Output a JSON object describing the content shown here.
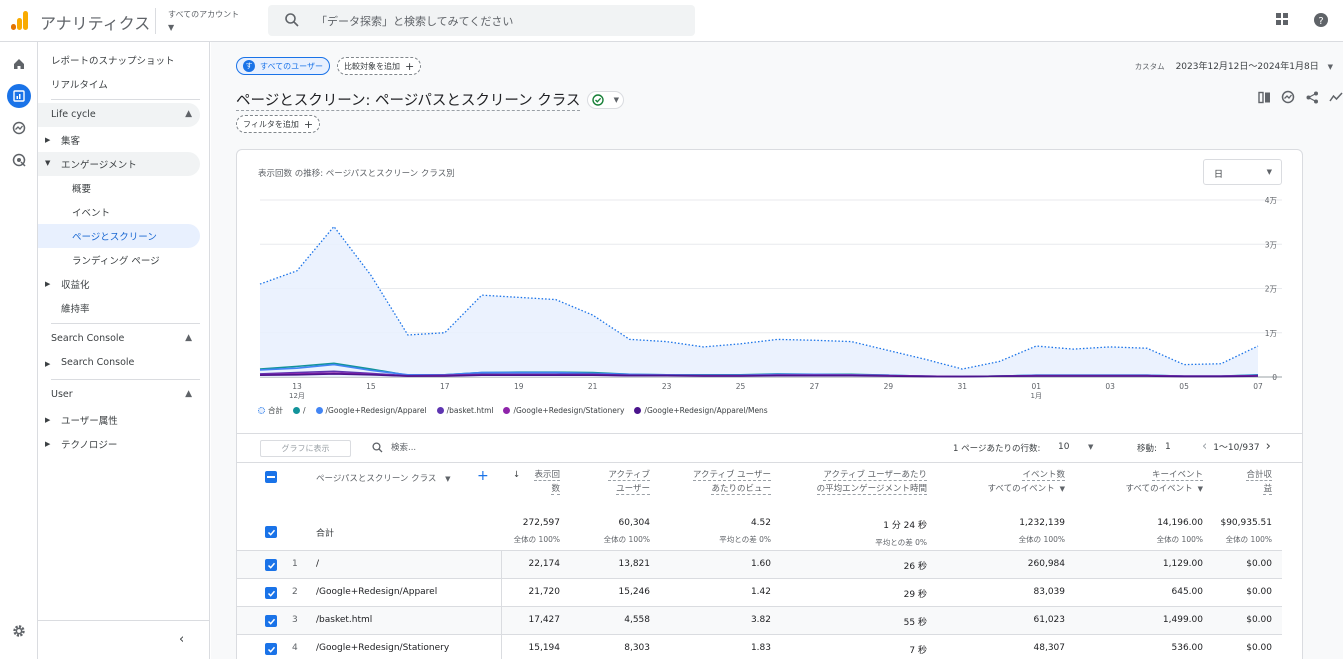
{
  "app": {
    "title": "アナリティクス",
    "account_label": "すべてのアカウント",
    "search_placeholder": "「データ探索」と検索してみてください",
    "brand_colors": {
      "orange": "#f9ab00",
      "dark_orange": "#e37400",
      "blue": "#1a73e8"
    }
  },
  "nav": {
    "top_items": [
      "レポートのスナップショット",
      "リアルタイム"
    ],
    "lifecycle": {
      "title": "Life cycle",
      "items": {
        "acquisition": "集客",
        "engagement": "エンゲージメント",
        "engagement_sub": [
          "概要",
          "イベント",
          "ページとスクリーン",
          "ランディング ページ"
        ],
        "monetization": "収益化",
        "retention": "維持率"
      }
    },
    "search_console": {
      "title": "Search Console",
      "item": "Search Console"
    },
    "user": {
      "title": "User",
      "items": [
        "ユーザー属性",
        "テクノロジー"
      ]
    }
  },
  "main": {
    "user_chip": "すべてのユーザー",
    "user_chip_avatar": "す",
    "add_compare": "比較対象を追加",
    "add_filter": "フィルタを追加",
    "date_label": "カスタム",
    "date_range": "2023年12月12日～2024年1月8日",
    "page_title": "ページとスクリーン: ページパスとスクリーン クラス"
  },
  "chart": {
    "title": "表示回数 の推移: ページパスとスクリーン クラス別",
    "granularity": "日",
    "chart_data": {
      "type": "area",
      "x": [
        "12/12",
        "12/13",
        "12/14",
        "12/15",
        "12/16",
        "12/17",
        "12/18",
        "12/19",
        "12/20",
        "12/21",
        "12/22",
        "12/23",
        "12/24",
        "12/25",
        "12/26",
        "12/27",
        "12/28",
        "12/29",
        "12/30",
        "12/31",
        "1/1",
        "1/2",
        "1/3",
        "1/4",
        "1/5",
        "1/6",
        "1/7",
        "1/8"
      ],
      "x_tick_labels": [
        "13",
        "15",
        "17",
        "19",
        "21",
        "23",
        "25",
        "27",
        "29",
        "31",
        "01",
        "03",
        "05",
        "07"
      ],
      "x_tick_sublabels": {
        "13": "12月",
        "01": "1月"
      },
      "y_tick_labels": [
        "0",
        "1万",
        "2万",
        "3万",
        "4万"
      ],
      "ylim": [
        0,
        40000
      ],
      "series": [
        {
          "name": "合計",
          "color": "#1a73e8",
          "style": "dotted-area",
          "values": [
            21000,
            24000,
            34000,
            23000,
            9500,
            10000,
            18500,
            18000,
            17500,
            14000,
            8500,
            8000,
            6800,
            7500,
            8500,
            8300,
            8000,
            6000,
            4000,
            1800,
            3500,
            7000,
            6300,
            6800,
            6500,
            2800,
            3000,
            7000
          ]
        },
        {
          "name": "/",
          "color": "#12939a",
          "values": [
            1800,
            2400,
            3100,
            1800,
            400,
            500,
            1000,
            1100,
            1100,
            1000,
            600,
            500,
            500,
            500,
            700,
            600,
            600,
            400,
            200,
            100,
            200,
            400,
            400,
            400,
            400,
            200,
            200,
            500
          ]
        },
        {
          "name": "/Google+Redesign/Apparel",
          "color": "#4285f4",
          "values": [
            1600,
            2000,
            2800,
            1500,
            500,
            500,
            1000,
            1000,
            1000,
            800,
            600,
            500,
            400,
            400,
            600,
            600,
            500,
            400,
            200,
            100,
            200,
            400,
            400,
            400,
            400,
            200,
            200,
            400
          ]
        },
        {
          "name": "/basket.html",
          "color": "#5e35b1",
          "values": [
            700,
            1000,
            1300,
            800,
            300,
            400,
            600,
            600,
            600,
            600,
            400,
            400,
            300,
            300,
            400,
            400,
            400,
            300,
            200,
            100,
            200,
            300,
            300,
            300,
            300,
            200,
            200,
            300
          ]
        },
        {
          "name": "/Google+Redesign/Stationery",
          "color": "#8e24aa",
          "values": [
            500,
            700,
            900,
            600,
            200,
            300,
            500,
            500,
            500,
            500,
            300,
            300,
            300,
            300,
            400,
            400,
            400,
            300,
            200,
            100,
            200,
            300,
            300,
            300,
            300,
            200,
            200,
            300
          ]
        },
        {
          "name": "/Google+Redesign/Apparel/Mens",
          "color": "#4a148c",
          "values": [
            400,
            500,
            700,
            500,
            200,
            200,
            400,
            400,
            400,
            400,
            300,
            300,
            200,
            200,
            300,
            300,
            300,
            200,
            100,
            100,
            200,
            200,
            200,
            200,
            200,
            100,
            100,
            200
          ]
        }
      ],
      "grid": true,
      "legend_position": "bottom-left"
    }
  },
  "table_tools": {
    "plot_button": "グラフに表示",
    "search_placeholder": "検索...",
    "rows_per_page_label": "1 ページあたりの行数:",
    "rows_per_page": "10",
    "goto_label": "移動:",
    "goto_value": "1",
    "page_info": "1～10/937"
  },
  "table": {
    "dimension_header": "ページパスとスクリーン クラス",
    "headers": [
      {
        "line1": "表示回",
        "line2": "数",
        "sorted": true
      },
      {
        "line1": "アクティブ",
        "line2": "ユーザー"
      },
      {
        "line1": "アクティブ ユーザー",
        "line2": "あたりのビュー"
      },
      {
        "line1": "アクティブ ユーザーあたり",
        "line2": "の平均エンゲージメント時間"
      },
      {
        "line1": "イベント数",
        "line2": "すべてのイベント"
      },
      {
        "line1": "キーイベント",
        "line2": "すべてのイベント"
      },
      {
        "line1": "合計収",
        "line2": "益"
      }
    ],
    "total_label": "合計",
    "totals": [
      {
        "value": "272,597",
        "sub": "全体の 100%"
      },
      {
        "value": "60,304",
        "sub": "全体の 100%"
      },
      {
        "value": "4.52",
        "sub": "平均との差 0%"
      },
      {
        "value": "1 分 24 秒",
        "sub": "平均との差 0%"
      },
      {
        "value": "1,232,139",
        "sub": "全体の 100%"
      },
      {
        "value": "14,196.00",
        "sub": "全体の 100%"
      },
      {
        "value": "$90,935.51",
        "sub": "全体の 100%"
      }
    ],
    "rows": [
      {
        "rank": "1",
        "path": "/",
        "views": "22,174",
        "users": "13,821",
        "vpu": "1.60",
        "time": "26 秒",
        "events": "260,984",
        "key": "1,129.00",
        "rev": "$0.00"
      },
      {
        "rank": "2",
        "path": "/Google+Redesign/Apparel",
        "views": "21,720",
        "users": "15,246",
        "vpu": "1.42",
        "time": "29 秒",
        "events": "83,039",
        "key": "645.00",
        "rev": "$0.00"
      },
      {
        "rank": "3",
        "path": "/basket.html",
        "views": "17,427",
        "users": "4,558",
        "vpu": "3.82",
        "time": "55 秒",
        "events": "61,023",
        "key": "1,499.00",
        "rev": "$0.00"
      },
      {
        "rank": "4",
        "path": "/Google+Redesign/Stationery",
        "views": "15,194",
        "users": "8,303",
        "vpu": "1.83",
        "time": "7 秒",
        "events": "48,307",
        "key": "536.00",
        "rev": "$0.00"
      }
    ]
  }
}
